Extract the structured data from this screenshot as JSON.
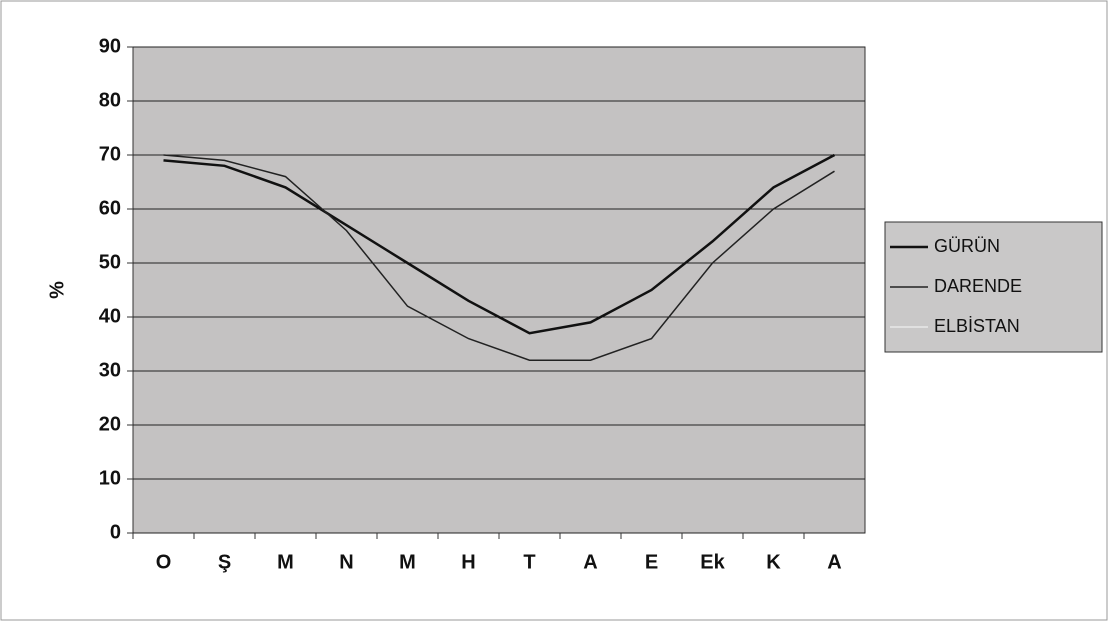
{
  "chart_data": {
    "type": "line",
    "y_label": "%",
    "categories": [
      "O",
      "Ş",
      "M",
      "N",
      "M",
      "H",
      "T",
      "A",
      "E",
      "Ek",
      "K",
      "A"
    ],
    "series": [
      {
        "name": "GÜRÜN",
        "color": "#111111",
        "width": 2.5,
        "values": [
          69,
          68,
          64,
          57,
          50,
          43,
          37,
          39,
          45,
          54,
          64,
          70
        ]
      },
      {
        "name": "DARENDE",
        "color": "#222222",
        "width": 1.5,
        "values": [
          70,
          69,
          66,
          56,
          42,
          36,
          32,
          32,
          36,
          50,
          60,
          67
        ]
      },
      {
        "name": "ELBİSTAN",
        "color": "#e8e8e8",
        "width": 1.5,
        "values": [
          null,
          null,
          null,
          null,
          null,
          null,
          null,
          null,
          null,
          null,
          null,
          null
        ]
      }
    ],
    "ylim": [
      0,
      90
    ],
    "yticks": [
      0,
      10,
      20,
      30,
      40,
      50,
      60,
      70,
      80,
      90
    ],
    "grid": true,
    "legend": "right"
  }
}
